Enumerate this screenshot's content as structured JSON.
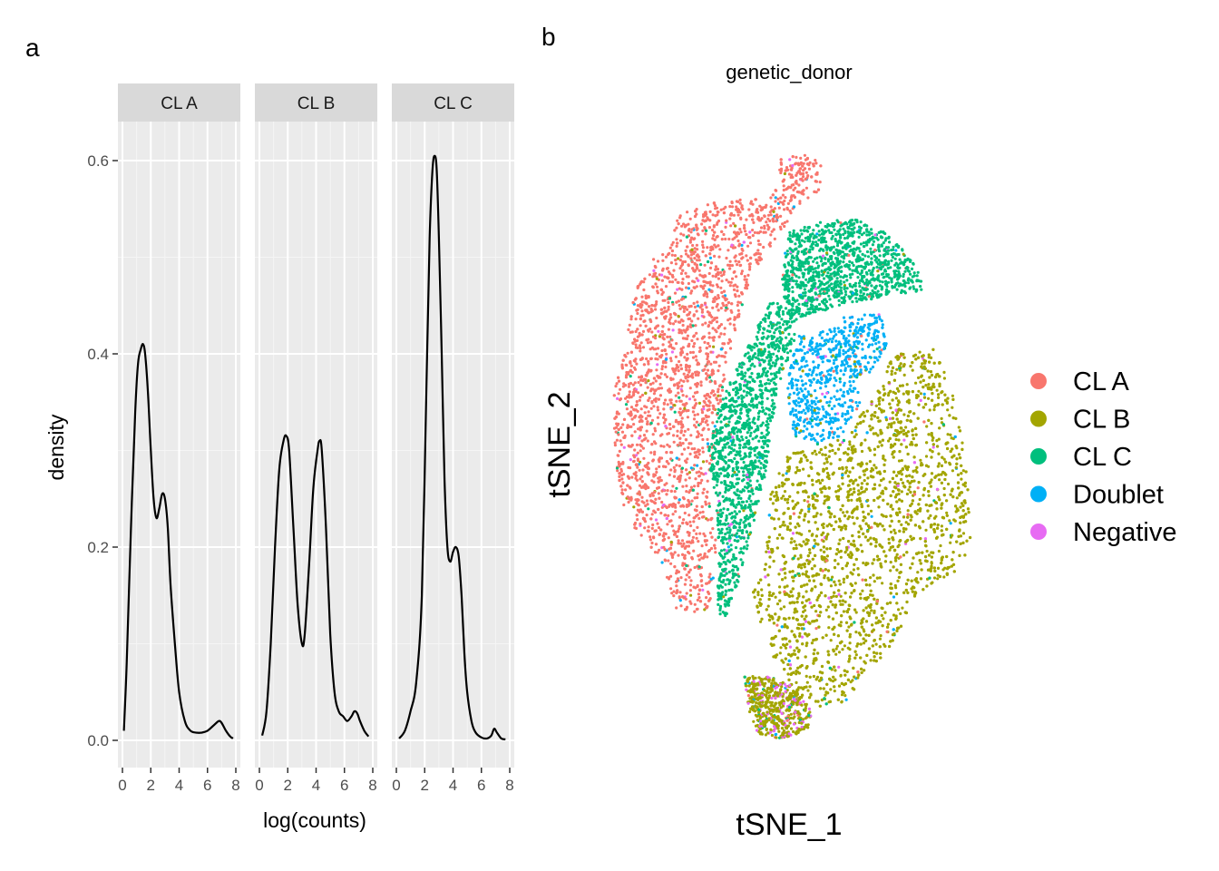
{
  "panel_labels": {
    "a": "a",
    "b": "b"
  },
  "chart_data": [
    {
      "type": "line",
      "kind": "density-facets",
      "xlabel": "log(counts)",
      "ylabel": "density",
      "xlim": [
        0,
        8
      ],
      "ylim": [
        0,
        0.62
      ],
      "x_ticks": [
        "0",
        "2",
        "4",
        "6",
        "8"
      ],
      "y_ticks": [
        "0.0",
        "0.2",
        "0.4",
        "0.6"
      ],
      "grid": true,
      "facets": [
        {
          "name": "CL A",
          "x": [
            0.1,
            0.3,
            0.6,
            0.9,
            1.1,
            1.3,
            1.45,
            1.6,
            1.8,
            2.0,
            2.2,
            2.4,
            2.6,
            2.8,
            3.0,
            3.2,
            3.4,
            3.7,
            4.0,
            4.4,
            4.8,
            5.2,
            5.6,
            6.0,
            6.4,
            6.8,
            7.0,
            7.3,
            7.6,
            7.8
          ],
          "y": [
            0.01,
            0.08,
            0.22,
            0.34,
            0.39,
            0.405,
            0.41,
            0.4,
            0.36,
            0.3,
            0.25,
            0.23,
            0.24,
            0.255,
            0.25,
            0.22,
            0.16,
            0.1,
            0.05,
            0.02,
            0.01,
            0.008,
            0.008,
            0.01,
            0.015,
            0.02,
            0.018,
            0.01,
            0.004,
            0.002
          ]
        },
        {
          "name": "CL B",
          "x": [
            0.2,
            0.5,
            0.8,
            1.1,
            1.4,
            1.7,
            1.9,
            2.1,
            2.4,
            2.7,
            3.0,
            3.2,
            3.5,
            3.8,
            4.1,
            4.25,
            4.4,
            4.7,
            5.0,
            5.3,
            5.6,
            5.9,
            6.2,
            6.5,
            6.7,
            6.9,
            7.1,
            7.4,
            7.7
          ],
          "y": [
            0.005,
            0.03,
            0.1,
            0.2,
            0.28,
            0.31,
            0.315,
            0.3,
            0.22,
            0.14,
            0.1,
            0.11,
            0.18,
            0.26,
            0.3,
            0.31,
            0.3,
            0.22,
            0.11,
            0.05,
            0.03,
            0.025,
            0.02,
            0.025,
            0.03,
            0.028,
            0.02,
            0.01,
            0.004
          ]
        },
        {
          "name": "CL C",
          "x": [
            0.2,
            0.6,
            1.0,
            1.4,
            1.8,
            2.1,
            2.35,
            2.55,
            2.7,
            2.85,
            3.0,
            3.2,
            3.4,
            3.6,
            3.8,
            4.0,
            4.2,
            4.4,
            4.6,
            4.8,
            5.0,
            5.3,
            5.6,
            6.0,
            6.4,
            6.7,
            6.9,
            7.1,
            7.4,
            7.7
          ],
          "y": [
            0.002,
            0.01,
            0.03,
            0.06,
            0.15,
            0.35,
            0.52,
            0.59,
            0.605,
            0.59,
            0.52,
            0.4,
            0.27,
            0.2,
            0.185,
            0.195,
            0.2,
            0.19,
            0.15,
            0.09,
            0.05,
            0.02,
            0.008,
            0.003,
            0.002,
            0.005,
            0.012,
            0.008,
            0.002,
            0.001
          ]
        }
      ]
    },
    {
      "type": "scatter",
      "title": "genetic_donor",
      "xlabel": "tSNE_1",
      "ylabel": "tSNE_2",
      "grid": false,
      "legend": "right",
      "series": [
        {
          "name": "CL A",
          "color": "#F8766D"
        },
        {
          "name": "CL B",
          "color": "#A3A500"
        },
        {
          "name": "CL C",
          "color": "#00BF7D"
        },
        {
          "name": "Doublet",
          "color": "#00B0F6"
        },
        {
          "name": "Negative",
          "color": "#E76BF3"
        }
      ]
    }
  ]
}
